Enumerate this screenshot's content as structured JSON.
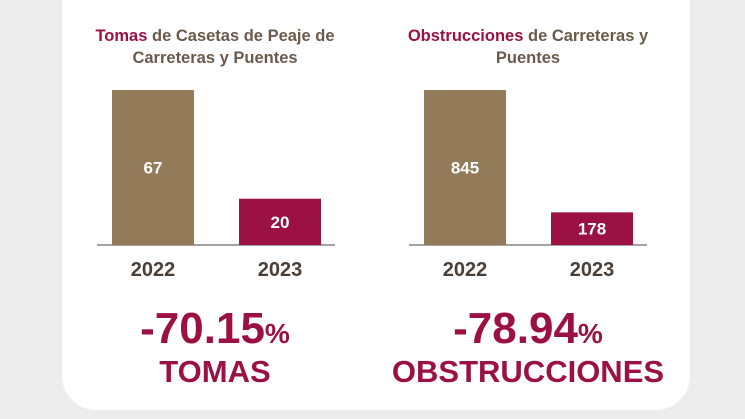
{
  "chart_data": [
    {
      "type": "bar",
      "title_highlight": "Tomas",
      "title": "de Casetas de Peaje de Carreteras y Puentes",
      "categories": [
        "2022",
        "2023"
      ],
      "values": [
        67,
        20
      ],
      "colors": [
        "#937a58",
        "#9b1141"
      ],
      "change_number": "-70.15",
      "change_unit": "%",
      "change_caption": "TOMAS"
    },
    {
      "type": "bar",
      "title_highlight": "Obstrucciones",
      "title": "de Carreteras y Puentes",
      "categories": [
        "2022",
        "2023"
      ],
      "values": [
        845,
        178
      ],
      "colors": [
        "#937a58",
        "#9b1141"
      ],
      "change_number": "-78.94",
      "change_unit": "%",
      "change_caption": "OBSTRUCCIONES"
    }
  ]
}
